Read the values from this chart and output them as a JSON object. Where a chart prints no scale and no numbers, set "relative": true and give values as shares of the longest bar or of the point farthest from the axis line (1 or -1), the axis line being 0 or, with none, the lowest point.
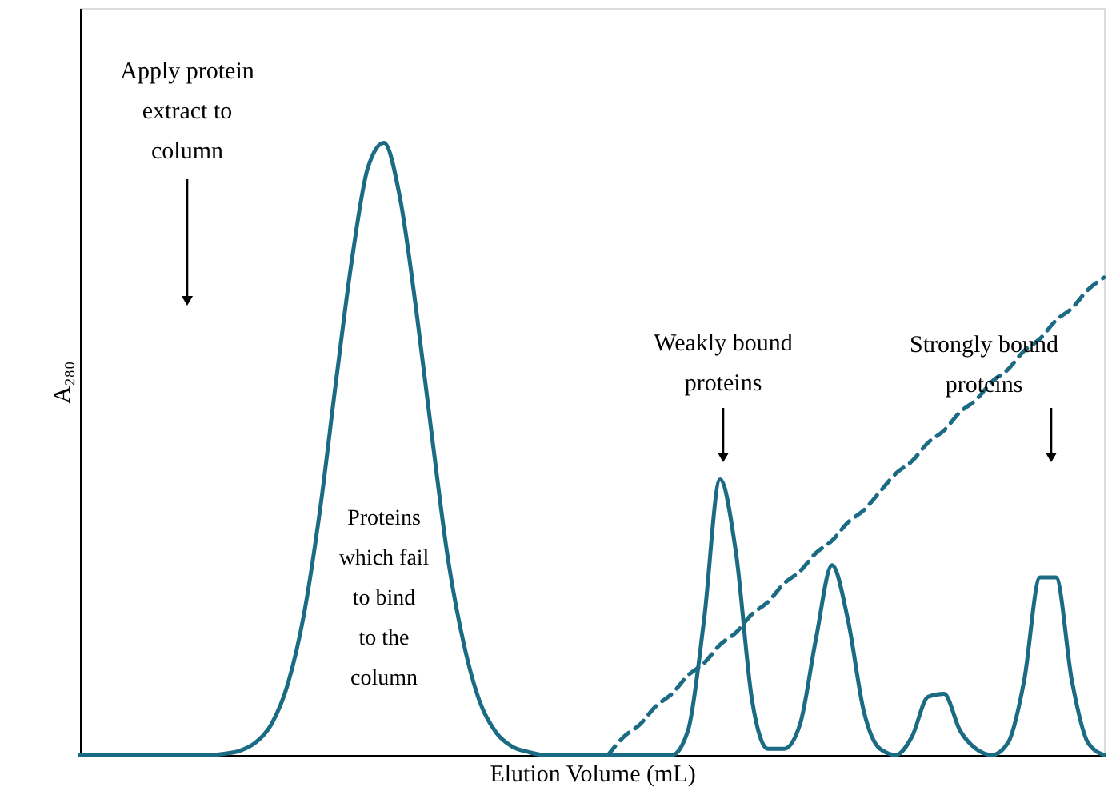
{
  "chart_data": {
    "type": "line",
    "relative": true,
    "xlabel": "Elution Volume (mL)",
    "ylabel": "A₂₈₀",
    "tick_labels": false,
    "grid": false,
    "marker": "none",
    "categories": [
      null,
      null,
      null,
      null,
      null,
      null,
      null,
      null,
      null,
      null,
      null,
      null,
      null,
      null,
      null,
      null,
      null,
      null,
      null,
      null,
      null,
      null,
      null,
      null,
      null,
      null,
      null,
      null,
      null,
      null,
      null,
      null,
      null,
      null,
      null,
      null,
      null,
      null,
      null,
      null,
      null,
      null,
      null,
      null,
      null,
      null,
      null,
      null,
      null,
      null,
      null,
      null,
      null,
      null,
      null,
      null,
      null,
      null,
      null,
      null,
      null,
      null,
      null,
      null,
      null
    ],
    "series": [
      {
        "color": "#1b6b84",
        "line_style": "solid",
        "values": [
          0,
          0,
          0,
          0,
          0,
          0,
          0,
          0,
          0,
          0.002,
          0.007,
          0.021,
          0.052,
          0.117,
          0.23,
          0.4,
          0.61,
          0.81,
          0.96,
          1.0,
          0.91,
          0.73,
          0.52,
          0.32,
          0.18,
          0.086,
          0.037,
          0.014,
          0.005,
          0,
          0,
          0,
          0,
          0,
          0,
          0,
          0,
          0,
          0.04,
          0.22,
          0.45,
          0.33,
          0.09,
          0.01,
          0.01,
          0.05,
          0.19,
          0.31,
          0.22,
          0.07,
          0.01,
          0,
          0.03,
          0.095,
          0.1,
          0.04,
          0.01,
          0,
          0.02,
          0.12,
          0.29,
          0.29,
          0.12,
          0.02,
          0
        ]
      },
      {
        "color": "#1b6b84",
        "line_style": "dashed",
        "values": [
          null,
          null,
          null,
          null,
          null,
          null,
          null,
          null,
          null,
          null,
          null,
          null,
          null,
          null,
          null,
          null,
          null,
          null,
          null,
          null,
          null,
          null,
          null,
          null,
          null,
          null,
          null,
          null,
          null,
          null,
          null,
          null,
          null,
          0,
          0.03,
          0.05,
          0.08,
          0.1,
          0.13,
          0.15,
          0.18,
          0.2,
          0.23,
          0.25,
          0.28,
          0.3,
          0.33,
          0.35,
          0.38,
          0.4,
          0.43,
          0.46,
          0.48,
          0.51,
          0.53,
          0.56,
          0.58,
          0.61,
          0.63,
          0.66,
          0.68,
          0.71,
          0.73,
          0.76,
          0.78
        ]
      }
    ],
    "annotations": [
      "Apply protein\nextract to\ncolumn",
      "Weakly bound\nproteins",
      "Strongly bound\nproteins",
      "Proteins\nwhich fail\nto bind\nto the\ncolumn"
    ]
  }
}
